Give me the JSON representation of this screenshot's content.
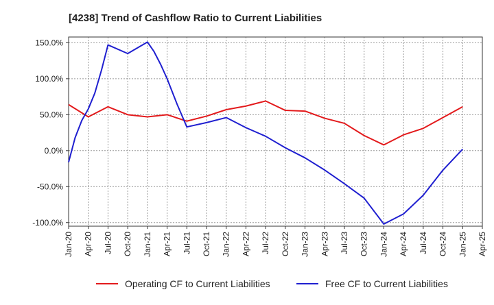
{
  "chart_data": {
    "type": "line",
    "title": "[4238]  Trend of Cashflow Ratio to Current Liabilities",
    "xlabel": "",
    "ylabel": "",
    "categories": [
      "Jan-20",
      "Apr-20",
      "Jul-20",
      "Oct-20",
      "Jan-21",
      "Apr-21",
      "Jul-21",
      "Oct-21",
      "Jan-22",
      "Apr-22",
      "Jul-22",
      "Oct-22",
      "Jan-23",
      "Apr-23",
      "Jul-23",
      "Oct-23",
      "Jan-24",
      "Apr-24",
      "Jul-24",
      "Oct-24",
      "Jan-25",
      "Apr-25"
    ],
    "ylim": [
      -105,
      158
    ],
    "yticks": [
      -100,
      -50,
      0,
      50,
      100,
      150
    ],
    "ytick_labels": [
      "-100.0%",
      "-50.0%",
      "0.0%",
      "50.0%",
      "100.0%",
      "150.0%"
    ],
    "grid": true,
    "legend_position": "bottom",
    "series": [
      {
        "name": "Operating CF to Current Liabilities",
        "color": "#e31a1c",
        "x": [
          0,
          1,
          2,
          3,
          4,
          5,
          6,
          7,
          8,
          9,
          10,
          11,
          12,
          13,
          14,
          15,
          16,
          17,
          18,
          19,
          20
        ],
        "values": [
          64,
          47,
          61,
          50,
          47,
          50,
          41,
          48,
          57,
          62,
          69,
          56,
          55,
          45,
          38,
          21,
          8,
          22,
          31,
          46,
          61
        ]
      },
      {
        "name": "Free CF to Current Liabilities",
        "color": "#1f1fd0",
        "x": [
          0,
          0.33,
          0.67,
          1,
          1.33,
          1.67,
          2,
          3,
          4,
          4.33,
          4.67,
          5,
          5.5,
          6,
          7,
          8,
          9,
          10,
          11,
          12,
          13,
          14,
          15,
          16,
          17,
          18,
          19,
          20
        ],
        "values": [
          -16,
          18,
          42,
          58,
          80,
          112,
          147,
          135,
          151,
          138,
          120,
          100,
          65,
          33,
          39,
          46,
          32,
          20,
          4,
          -10,
          -27,
          -46,
          -66,
          -102,
          -88,
          -62,
          -27,
          2
        ]
      }
    ]
  }
}
